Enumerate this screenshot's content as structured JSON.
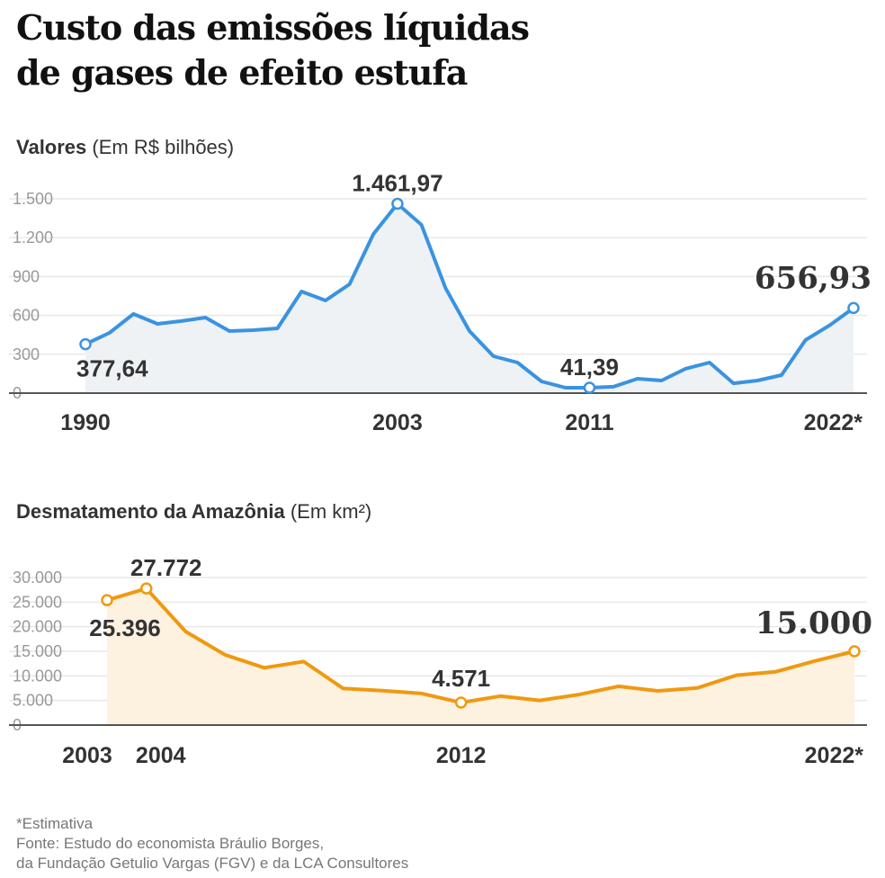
{
  "title_line1": "Custo das emissões líquidas",
  "title_line2": "de gases de efeito estufa",
  "footer": {
    "note": "*Estimativa",
    "source1": "Fonte: Estudo do economista Bráulio Borges,",
    "source2": "da Fundação Getulio Vargas (FGV) e da LCA Consultores"
  },
  "chart_data": [
    {
      "type": "area",
      "title": "Valores",
      "unit": "(Em R$ bilhões)",
      "color": "#3a93e0",
      "fill": "#eef2f5",
      "x": [
        1990,
        1991,
        1992,
        1993,
        1994,
        1995,
        1996,
        1997,
        1998,
        1999,
        2000,
        2001,
        2002,
        2003,
        2004,
        2005,
        2006,
        2007,
        2008,
        2009,
        2010,
        2011,
        2012,
        2013,
        2014,
        2015,
        2016,
        2017,
        2018,
        2019,
        2020,
        2021,
        2022
      ],
      "values": [
        377.64,
        465,
        611,
        535,
        556,
        583,
        479,
        486,
        500,
        785,
        715,
        840,
        1229,
        1461.97,
        1299,
        812,
        479,
        285,
        236,
        90,
        42,
        41.39,
        49,
        111,
        97,
        188,
        236,
        76,
        97,
        139,
        410,
        523,
        656.93
      ],
      "ylim": [
        0,
        1500
      ],
      "yticks": [
        0,
        300,
        600,
        900,
        1200,
        1500
      ],
      "ytick_labels": [
        "0",
        "300",
        "600",
        "900",
        "1.200",
        "1.500"
      ],
      "xtick_labels": [
        {
          "x": 1990,
          "label": "1990"
        },
        {
          "x": 2003,
          "label": "2003"
        },
        {
          "x": 2011,
          "label": "2011"
        },
        {
          "x": 2022,
          "label": "2022*"
        }
      ],
      "annotations": [
        {
          "x": 1990,
          "label": "377,64"
        },
        {
          "x": 2003,
          "label": "1.461,97"
        },
        {
          "x": 2011,
          "label": "41,39"
        },
        {
          "x": 2022,
          "label": "656,93"
        }
      ],
      "grid": true
    },
    {
      "type": "area",
      "title": "Desmatamento da Amazônia",
      "unit": "(Em km²)",
      "color": "#f0990f",
      "fill": "#fdf1e0",
      "x": [
        2003,
        2004,
        2005,
        2006,
        2007,
        2008,
        2009,
        2010,
        2011,
        2012,
        2013,
        2014,
        2015,
        2016,
        2017,
        2018,
        2019,
        2020,
        2021,
        2022
      ],
      "values": [
        25396,
        27772,
        19014,
        14286,
        11651,
        12911,
        7464,
        7000,
        6418,
        4571,
        5891,
        5012,
        6207,
        7893,
        6947,
        7536,
        10129,
        10851,
        13038,
        15000
      ],
      "ylim": [
        0,
        30000
      ],
      "yticks": [
        0,
        5000,
        10000,
        15000,
        20000,
        25000,
        30000
      ],
      "ytick_labels": [
        "0",
        "5.000",
        "10.000",
        "15.000",
        "20.000",
        "25.000",
        "30.000"
      ],
      "xtick_labels": [
        {
          "x": 2003,
          "label": "2003"
        },
        {
          "x": 2004,
          "label": "2004"
        },
        {
          "x": 2012,
          "label": "2012"
        },
        {
          "x": 2022,
          "label": "2022*"
        }
      ],
      "annotations": [
        {
          "x": 2003,
          "label": "25.396"
        },
        {
          "x": 2004,
          "label": "27.772"
        },
        {
          "x": 2012,
          "label": "4.571"
        },
        {
          "x": 2022,
          "label": "15.000"
        }
      ],
      "grid": true
    }
  ]
}
